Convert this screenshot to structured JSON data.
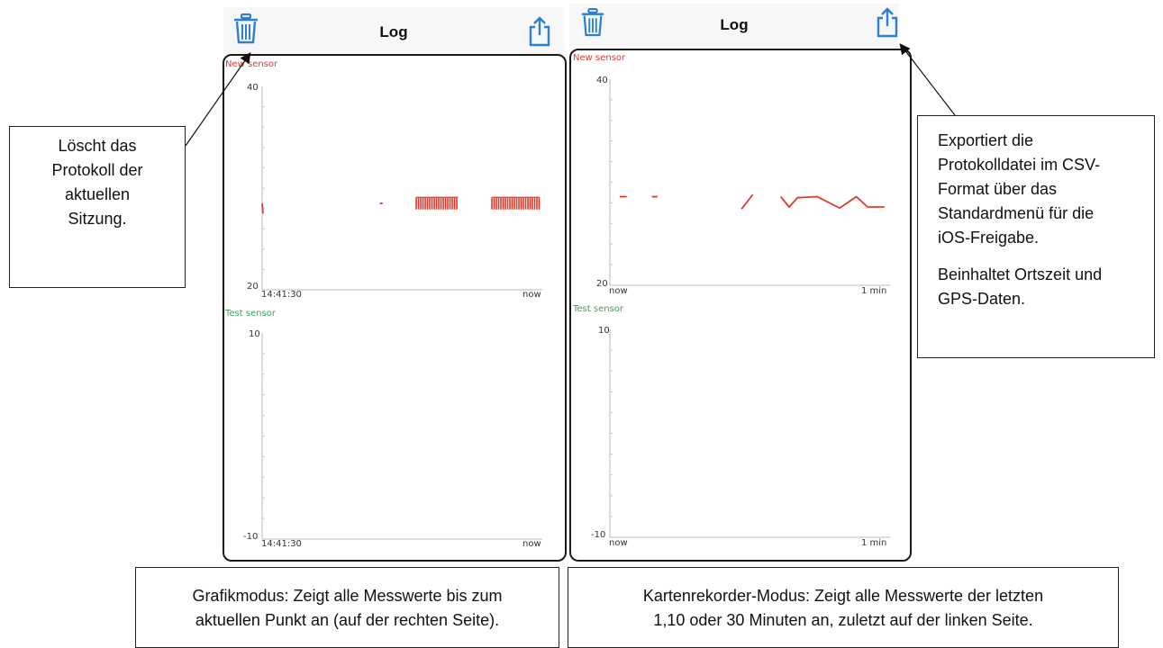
{
  "left_screen": {
    "title": "Log",
    "trash_icon": "trash-icon",
    "share_icon": "share-icon"
  },
  "right_screen": {
    "title": "Log",
    "trash_icon": "trash-icon",
    "share_icon": "share-icon"
  },
  "callouts": {
    "delete": [
      "Löscht das",
      "Protokoll der",
      "aktuellen",
      "Sitzung."
    ],
    "export_p1": [
      "Exportiert die",
      "Protokolldatei im CSV-",
      "Format über das",
      "Standardmenü für die",
      "iOS-Freigabe."
    ],
    "export_p2": [
      "Beinhaltet Ortszeit und",
      "GPS-Daten."
    ],
    "graph_mode": [
      "Grafikmodus: Zeigt alle Messwerte bis zum",
      "aktuellen Punkt an (auf der rechten Seite)."
    ],
    "recorder_mode": [
      "Kartenrekorder-Modus: Zeigt alle Messwerte der letzten",
      "1,10 oder 30 Minuten an, zuletzt auf der linken Seite."
    ]
  },
  "colors": {
    "new_sensor": "#e0392b",
    "test_sensor": "#3aa55a",
    "icon_blue": "#2b7fd4"
  },
  "chart_data": [
    {
      "type": "line",
      "series": [
        {
          "name": "New sensor",
          "segments": [
            [
              [
                0.0,
                28.5
              ],
              [
                0.3,
                27.5
              ]
            ],
            [
              [
                42.0,
                28.5
              ],
              [
                43.0,
                28.5
              ]
            ],
            [
              [
                55.0,
                28.5
              ],
              [
                70.0,
                28.5
              ]
            ],
            [
              [
                82.0,
                28.5
              ],
              [
                99.0,
                28.5
              ]
            ]
          ]
        }
      ],
      "x_tick_labels": [
        "14:41:30",
        "now"
      ],
      "ylim": [
        20,
        40
      ],
      "yticks": [
        "40",
        "20"
      ]
    },
    {
      "type": "line",
      "series": [
        {
          "name": "Test sensor",
          "segments": []
        }
      ],
      "x_tick_labels": [
        "14:41:30",
        "now"
      ],
      "ylim": [
        -10,
        10
      ],
      "yticks": [
        "10",
        "-10"
      ]
    },
    {
      "type": "line",
      "series": [
        {
          "name": "New sensor",
          "segments": [
            [
              [
                3.5,
                28.6
              ],
              [
                6.0,
                28.6
              ]
            ],
            [
              [
                15.0,
                28.6
              ],
              [
                17.0,
                28.6
              ]
            ],
            [
              [
                47.0,
                27.4
              ],
              [
                51.0,
                28.8
              ]
            ],
            [
              [
                61.0,
                28.6
              ],
              [
                64.0,
                27.6
              ],
              [
                67.0,
                28.5
              ],
              [
                74.0,
                28.6
              ],
              [
                82.0,
                27.5
              ],
              [
                88.0,
                28.6
              ],
              [
                92.0,
                27.6
              ],
              [
                98.0,
                27.6
              ]
            ]
          ]
        }
      ],
      "x_tick_labels": [
        "now",
        "1 min"
      ],
      "ylim": [
        20,
        40
      ],
      "yticks": [
        "40",
        "20"
      ]
    },
    {
      "type": "line",
      "series": [
        {
          "name": "Test sensor",
          "segments": []
        }
      ],
      "x_tick_labels": [
        "now",
        "1 min"
      ],
      "ylim": [
        -10,
        10
      ],
      "yticks": [
        "10",
        "-10"
      ]
    }
  ]
}
